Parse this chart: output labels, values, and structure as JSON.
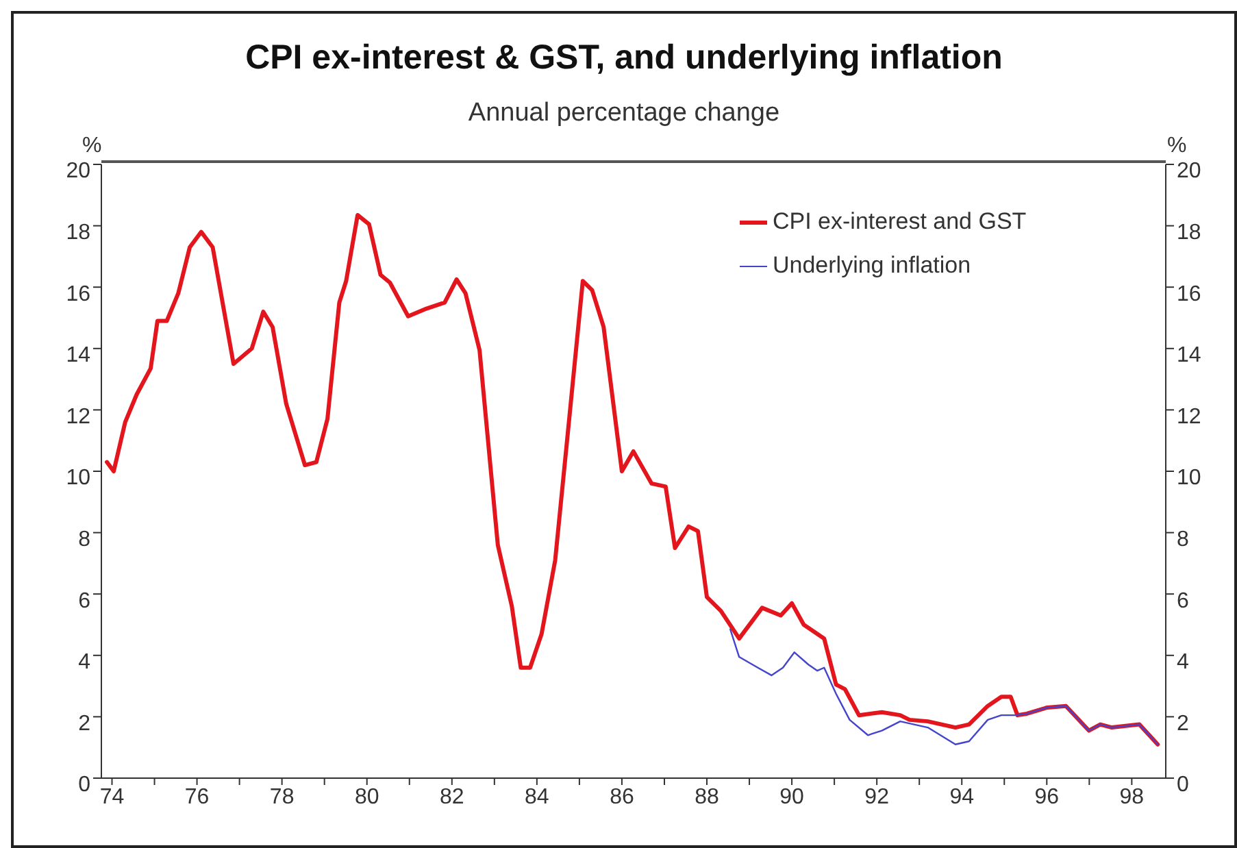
{
  "chart_data": {
    "type": "line",
    "title": "CPI ex-interest & GST, and underlying inflation",
    "subtitle": "Annual percentage change",
    "ylabel": "%",
    "y2label": "%",
    "xlim": [
      73.75,
      98.8
    ],
    "xticks": [
      {
        "value": 74,
        "label": "74"
      },
      {
        "value": 75,
        "label": null
      },
      {
        "value": 76,
        "label": "76"
      },
      {
        "value": 77,
        "label": null
      },
      {
        "value": 78,
        "label": "78"
      },
      {
        "value": 79,
        "label": null
      },
      {
        "value": 80,
        "label": "80"
      },
      {
        "value": 81,
        "label": null
      },
      {
        "value": 82,
        "label": "82"
      },
      {
        "value": 83,
        "label": null
      },
      {
        "value": 84,
        "label": "84"
      },
      {
        "value": 85,
        "label": null
      },
      {
        "value": 86,
        "label": "86"
      },
      {
        "value": 87,
        "label": null
      },
      {
        "value": 88,
        "label": "88"
      },
      {
        "value": 89,
        "label": null
      },
      {
        "value": 90,
        "label": "90"
      },
      {
        "value": 91,
        "label": null
      },
      {
        "value": 92,
        "label": "92"
      },
      {
        "value": 93,
        "label": null
      },
      {
        "value": 94,
        "label": "94"
      },
      {
        "value": 95,
        "label": null
      },
      {
        "value": 96,
        "label": "96"
      },
      {
        "value": 97,
        "label": null
      },
      {
        "value": 98,
        "label": "98"
      }
    ],
    "ylim": [
      0,
      20
    ],
    "yticks": [
      0,
      2,
      4,
      6,
      8,
      10,
      12,
      14,
      16,
      18,
      20
    ],
    "y2lim": [
      0,
      20
    ],
    "y2ticks": [
      0,
      2,
      4,
      6,
      8,
      10,
      12,
      14,
      16,
      18,
      20
    ],
    "grid": false,
    "legend": "top right",
    "marker": "none",
    "line_style": "solid",
    "series": [
      {
        "name": "CPI ex-interest and GST",
        "color": "#e3161e",
        "x": [
          73.88,
          74.04,
          74.31,
          74.58,
          74.91,
          75.07,
          75.29,
          75.56,
          75.83,
          76.1,
          76.37,
          76.86,
          77.29,
          77.56,
          77.78,
          78.1,
          78.54,
          78.81,
          79.07,
          79.35,
          79.51,
          79.78,
          80.05,
          80.32,
          80.54,
          80.97,
          81.4,
          81.83,
          82.11,
          82.32,
          82.65,
          83.08,
          83.41,
          83.62,
          83.84,
          84.11,
          84.43,
          84.76,
          85.08,
          85.3,
          85.57,
          86.0,
          86.27,
          86.7,
          87.03,
          87.25,
          87.57,
          87.79,
          88.0,
          88.33,
          88.76,
          89.3,
          89.74,
          90.0,
          90.28,
          90.76,
          91.04,
          91.25,
          91.58,
          92.12,
          92.55,
          92.77,
          93.2,
          93.85,
          94.17,
          94.61,
          94.93,
          95.15,
          95.31,
          95.53,
          96.01,
          96.45,
          96.99,
          97.26,
          97.53,
          98.18,
          98.61
        ],
        "values": [
          10.3,
          10.0,
          11.6,
          12.5,
          13.35,
          14.9,
          14.9,
          15.8,
          17.3,
          17.8,
          17.3,
          13.5,
          14.0,
          15.2,
          14.7,
          12.2,
          10.2,
          10.3,
          11.7,
          15.5,
          16.2,
          18.35,
          18.05,
          16.4,
          16.15,
          15.05,
          15.3,
          15.5,
          16.25,
          15.8,
          13.95,
          7.6,
          5.6,
          3.6,
          3.6,
          4.7,
          7.1,
          11.7,
          16.2,
          15.9,
          14.7,
          10.0,
          10.65,
          9.6,
          9.5,
          7.5,
          8.2,
          8.05,
          5.9,
          5.45,
          4.55,
          5.55,
          5.3,
          5.7,
          5.0,
          4.55,
          3.05,
          2.9,
          2.05,
          2.15,
          2.05,
          1.9,
          1.85,
          1.65,
          1.75,
          2.35,
          2.65,
          2.65,
          2.05,
          2.1,
          2.3,
          2.35,
          1.55,
          1.75,
          1.65,
          1.75,
          1.1
        ]
      },
      {
        "name": "Underlying inflation",
        "color": "#4444cc",
        "x": [
          88.55,
          88.76,
          89.2,
          89.52,
          89.79,
          90.06,
          90.39,
          90.6,
          90.76,
          91.04,
          91.36,
          91.79,
          92.12,
          92.55,
          93.2,
          93.85,
          94.17,
          94.61,
          94.93,
          95.26,
          95.53,
          96.01,
          96.45,
          96.99,
          97.26,
          97.53,
          98.18,
          98.61
        ],
        "values": [
          4.85,
          3.95,
          3.6,
          3.35,
          3.6,
          4.1,
          3.7,
          3.5,
          3.6,
          2.75,
          1.9,
          1.4,
          1.55,
          1.85,
          1.65,
          1.1,
          1.2,
          1.9,
          2.05,
          2.05,
          2.1,
          2.3,
          2.35,
          1.55,
          1.75,
          1.65,
          1.75,
          1.1
        ]
      }
    ]
  }
}
